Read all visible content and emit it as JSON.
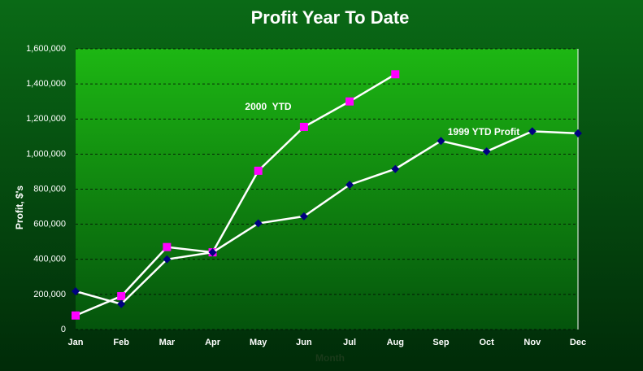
{
  "chart_data": {
    "type": "line",
    "title": "Profit Year To Date",
    "x_label": "Month",
    "y_label": "Profit, $'s",
    "categories": [
      "Jan",
      "Feb",
      "Mar",
      "Apr",
      "May",
      "Jun",
      "Jul",
      "Aug",
      "Sep",
      "Oct",
      "Nov",
      "Dec"
    ],
    "series": [
      {
        "name": "2000  YTD",
        "color": "#ff00ff",
        "marker": "square",
        "values": [
          80000,
          190000,
          470000,
          440000,
          905000,
          1155000,
          1300000,
          1455000,
          null,
          null,
          null,
          null
        ]
      },
      {
        "name": "1999 YTD Profit",
        "color": "#000080",
        "marker": "diamond",
        "values": [
          218000,
          145000,
          400000,
          440000,
          605000,
          645000,
          825000,
          915000,
          1075000,
          1015000,
          1130000,
          1118000
        ]
      }
    ],
    "line_color": "#ffffff",
    "ylim": [
      0,
      1600000
    ],
    "yticks": [
      0,
      {
        "value": 200000,
        "label": "200,000"
      },
      {
        "value": 400000,
        "label": "400,000"
      },
      {
        "value": 600000,
        "label": "600,000"
      },
      {
        "value": 800000,
        "label": "800,000"
      },
      {
        "value": 1000000,
        "label": "1,000,000"
      },
      {
        "value": 1200000,
        "label": "1,200,000"
      },
      {
        "value": 1400000,
        "label": "1,400,000"
      },
      {
        "value": 1600000,
        "label": "1,600,000"
      }
    ],
    "grid": true
  }
}
